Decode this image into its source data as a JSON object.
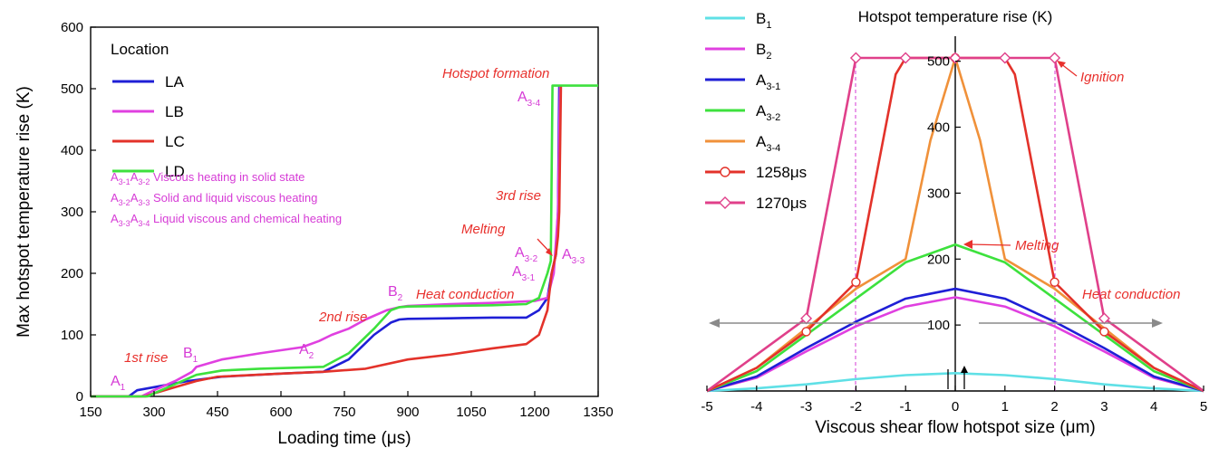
{
  "chart_data": [
    {
      "type": "line",
      "xlabel": "Loading time (μs)",
      "ylabel": "Max hotspot temperature rise (K)",
      "xlim": [
        150,
        1350
      ],
      "ylim": [
        0,
        600
      ],
      "xticks": [
        "150",
        "300",
        "450",
        "600",
        "750",
        "900",
        "1050",
        "1200",
        "1350"
      ],
      "yticks": [
        "0",
        "100",
        "200",
        "300",
        "400",
        "500",
        "600"
      ],
      "legend_title": "Location",
      "legend_position": "top-left",
      "series": [
        {
          "name": "LA",
          "color": "#1f1fd6",
          "x": [
            150,
            240,
            260,
            300,
            380,
            460,
            600,
            700,
            760,
            820,
            860,
            880,
            900,
            1000,
            1100,
            1180,
            1210,
            1230,
            1240,
            1250,
            1255,
            1258
          ],
          "y": [
            0,
            0,
            10,
            15,
            25,
            32,
            37,
            40,
            60,
            100,
            120,
            125,
            126,
            127,
            128,
            128,
            140,
            160,
            200,
            230,
            300,
            505
          ]
        },
        {
          "name": "LB",
          "color": "#e040e0",
          "x": [
            150,
            270,
            300,
            350,
            390,
            400,
            460,
            550,
            650,
            690,
            720,
            760,
            800,
            850,
            880,
            900,
            1000,
            1100,
            1200,
            1230,
            1245,
            1255,
            1260
          ],
          "y": [
            0,
            0,
            10,
            25,
            40,
            48,
            60,
            70,
            80,
            90,
            100,
            110,
            125,
            140,
            145,
            147,
            150,
            152,
            155,
            160,
            200,
            300,
            505
          ]
        },
        {
          "name": "LC",
          "color": "#e3322a",
          "x": [
            150,
            280,
            300,
            350,
            400,
            450,
            600,
            700,
            800,
            900,
            1000,
            1100,
            1180,
            1210,
            1230,
            1240,
            1250,
            1255,
            1258,
            1262
          ],
          "y": [
            0,
            0,
            5,
            15,
            25,
            32,
            37,
            40,
            45,
            60,
            68,
            78,
            85,
            100,
            140,
            200,
            230,
            260,
            300,
            505
          ]
        },
        {
          "name": "LD",
          "color": "#3de13d",
          "x": [
            150,
            285,
            300,
            350,
            400,
            460,
            550,
            650,
            700,
            760,
            820,
            860,
            880,
            900,
            1000,
            1100,
            1180,
            1210,
            1230,
            1238,
            1242,
            1350
          ],
          "y": [
            0,
            0,
            5,
            20,
            35,
            42,
            45,
            47,
            48,
            70,
            110,
            140,
            145,
            146,
            147,
            148,
            150,
            160,
            200,
            220,
            505,
            505
          ]
        }
      ],
      "annotations": {
        "hotspot_formation": "Hotspot formation",
        "rise1": "1st rise",
        "rise2": "2nd rise",
        "rise3": "3rd rise",
        "melting": "Melting",
        "heat_conduction": "Heat conduction",
        "a1": "A",
        "a1_sub": "1",
        "a2": "A",
        "a2_sub": "2",
        "b1": "B",
        "b1_sub": "1",
        "b2": "B",
        "b2_sub": "2",
        "a31": "A",
        "a31_sub": "3-1",
        "a32": "A",
        "a32_sub": "3-2",
        "a33": "A",
        "a33_sub": "3-3",
        "a34": "A",
        "a34_sub": "3-4",
        "note1_a": "A",
        "note1_s1": "3-1",
        "note1_b": "A",
        "note1_s2": "3-2",
        "note1_text": " Viscous heating in solid state",
        "note2_a": "A",
        "note2_s1": "3-2",
        "note2_b": "A",
        "note2_s2": "3-3",
        "note2_text": " Solid and liquid viscous heating",
        "note3_a": "A",
        "note3_s1": "3-3",
        "note3_b": "A",
        "note3_s2": "3-4",
        "note3_text": " Liquid viscous and chemical heating"
      }
    },
    {
      "type": "line",
      "title": "Hotspot temperature rise (K)",
      "xlabel": "Viscous shear flow hotspot size (μm)",
      "xlim": [
        -5,
        5
      ],
      "ylim": [
        0,
        520
      ],
      "xticks": [
        "-5",
        "-4",
        "-3",
        "-2",
        "-1",
        "0",
        "1",
        "2",
        "3",
        "4",
        "5"
      ],
      "yticks": [
        "100",
        "200",
        "300",
        "400",
        "500"
      ],
      "legend_position": "top-left",
      "series": [
        {
          "name": "B1",
          "name_base": "B",
          "name_sub": "1",
          "color": "#5fe0e6",
          "marker": "none",
          "x": [
            -5,
            -4,
            -3,
            -2,
            -1,
            0,
            1,
            2,
            3,
            4,
            5
          ],
          "y": [
            0,
            4,
            10,
            18,
            24,
            27,
            24,
            18,
            10,
            4,
            0
          ]
        },
        {
          "name": "B2",
          "name_base": "B",
          "name_sub": "2",
          "color": "#e040e0",
          "marker": "none",
          "x": [
            -5,
            -4,
            -3,
            -2,
            -1,
            0,
            1,
            2,
            3,
            4,
            5
          ],
          "y": [
            0,
            20,
            60,
            98,
            128,
            142,
            128,
            98,
            60,
            20,
            0
          ]
        },
        {
          "name": "A3-1",
          "name_base": "A",
          "name_sub": "3-1",
          "color": "#1f1fd6",
          "marker": "none",
          "x": [
            -5,
            -4,
            -3,
            -2,
            -1,
            0,
            1,
            2,
            3,
            4,
            5
          ],
          "y": [
            0,
            22,
            65,
            105,
            140,
            155,
            140,
            105,
            65,
            22,
            0
          ]
        },
        {
          "name": "A3-2",
          "name_base": "A",
          "name_sub": "3-2",
          "color": "#3de13d",
          "marker": "none",
          "x": [
            -5,
            -4,
            -3,
            -2,
            -1,
            0,
            1,
            2,
            3,
            4,
            5
          ],
          "y": [
            0,
            30,
            85,
            140,
            195,
            222,
            195,
            140,
            85,
            30,
            0
          ]
        },
        {
          "name": "A3-4",
          "name_base": "A",
          "name_sub": "3-4",
          "color": "#f0913a",
          "marker": "none",
          "x": [
            -5,
            -4,
            -3,
            -2,
            -1,
            -0.5,
            0,
            0.5,
            1,
            2,
            3,
            4,
            5
          ],
          "y": [
            0,
            35,
            95,
            155,
            200,
            380,
            505,
            380,
            200,
            155,
            95,
            35,
            0
          ]
        },
        {
          "name": "1258μs",
          "color": "#e3322a",
          "marker": "circle",
          "x": [
            -5,
            -4,
            -3,
            -2,
            -1.2,
            -1,
            -0.5,
            0,
            0.5,
            1,
            1.2,
            2,
            3,
            4,
            5
          ],
          "y": [
            0,
            35,
            90,
            165,
            480,
            505,
            505,
            505,
            505,
            505,
            480,
            165,
            90,
            35,
            0
          ]
        },
        {
          "name": "1270μs",
          "color": "#e0408a",
          "marker": "diamond",
          "x": [
            -5,
            -3,
            -2,
            -1,
            0,
            1,
            2,
            3,
            5
          ],
          "y": [
            0,
            110,
            505,
            505,
            505,
            505,
            505,
            110,
            0
          ]
        }
      ],
      "markers_1258": {
        "x": [
          -3,
          -2,
          0,
          2,
          3
        ],
        "y": [
          90,
          165,
          505,
          165,
          90
        ]
      },
      "markers_1270": {
        "x": [
          -3,
          -2,
          -1,
          0,
          1,
          2,
          3
        ],
        "y": [
          110,
          505,
          505,
          505,
          505,
          505,
          110
        ]
      },
      "annotations": {
        "ignition": "Ignition",
        "melting": "Melting",
        "heat_conduction": "Heat conduction"
      }
    }
  ],
  "colors": {
    "annotation_red": "#e8302c",
    "annotation_magenta": "#d63bd6",
    "arrow_gray": "#8a8a8a"
  }
}
